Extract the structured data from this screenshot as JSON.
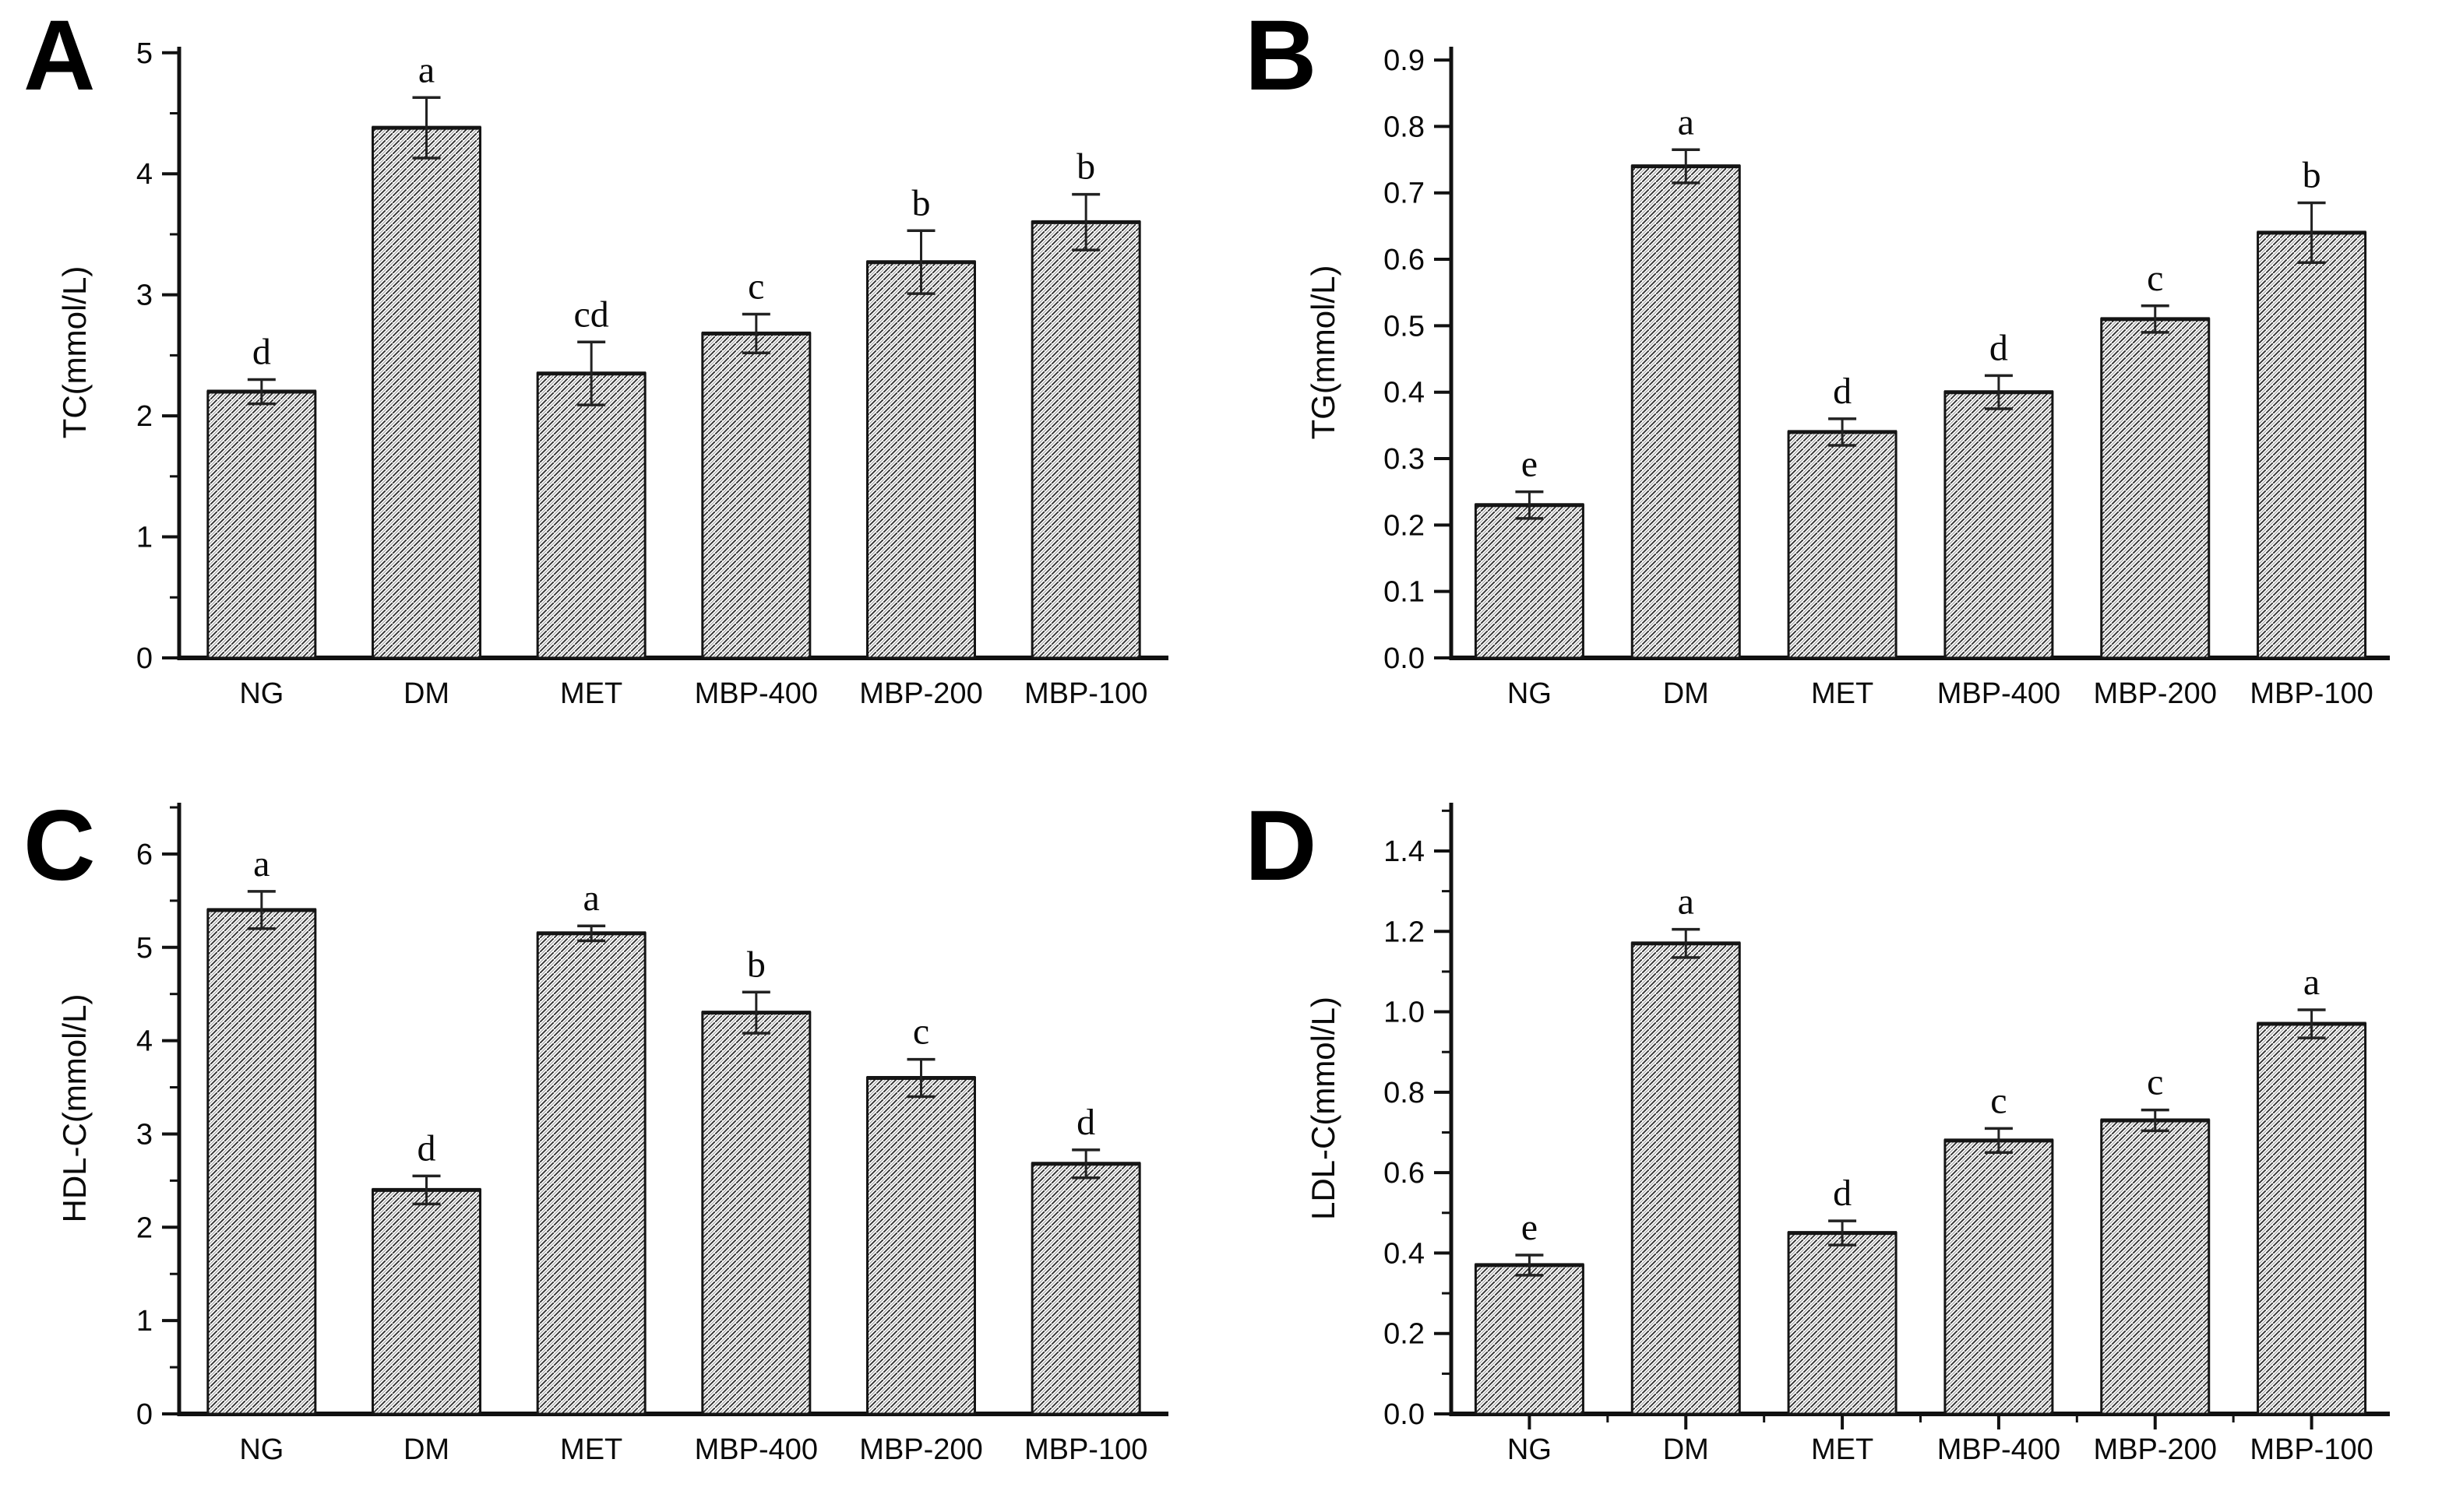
{
  "figure": {
    "background": "#ffffff",
    "axis_color": "#111111",
    "bar_outline_color": "#151515",
    "hatch_dark_color": "#2b2b2b",
    "hatch_light_color": "#a8a8a8",
    "error_bar_color": "#222222",
    "text_color": "#0a0a0a",
    "hatch_style": "diagonal-lines",
    "categories": [
      "NG",
      "DM",
      "MET",
      "MBP-400",
      "MBP-200",
      "MBP-100"
    ]
  },
  "chart_data": [
    {
      "panel": "A",
      "type": "bar",
      "title": "",
      "ylabel": "TC(mmol/L)",
      "xlabel": "",
      "categories": [
        "NG",
        "DM",
        "MET",
        "MBP-400",
        "MBP-200",
        "MBP-100"
      ],
      "values": [
        2.2,
        4.38,
        2.35,
        2.68,
        3.27,
        3.6
      ],
      "errors": [
        0.1,
        0.25,
        0.26,
        0.16,
        0.26,
        0.23
      ],
      "sig_letters": [
        "d",
        "a",
        "cd",
        "c",
        "b",
        "b"
      ],
      "ylim": [
        0,
        5.05
      ],
      "ytick_step": 1,
      "ytick_max": 5,
      "minor_step": 0.5,
      "tick_decimals": 0,
      "grid": "off",
      "legend": "none",
      "x_center_ticks": false
    },
    {
      "panel": "B",
      "type": "bar",
      "title": "",
      "ylabel": "TG(mmol/L)",
      "xlabel": "",
      "categories": [
        "NG",
        "DM",
        "MET",
        "MBP-400",
        "MBP-200",
        "MBP-100"
      ],
      "values": [
        0.23,
        0.74,
        0.34,
        0.4,
        0.51,
        0.64
      ],
      "errors": [
        0.02,
        0.025,
        0.02,
        0.025,
        0.02,
        0.045
      ],
      "sig_letters": [
        "e",
        "a",
        "d",
        "d",
        "c",
        "b"
      ],
      "ylim": [
        0,
        0.92
      ],
      "ytick_step": 0.1,
      "ytick_max": 0.9,
      "minor_step": 0,
      "tick_decimals": 1,
      "grid": "off",
      "legend": "none",
      "x_center_ticks": false
    },
    {
      "panel": "C",
      "type": "bar",
      "title": "",
      "ylabel": "HDL-C(mmol/L)",
      "xlabel": "",
      "categories": [
        "NG",
        "DM",
        "MET",
        "MBP-400",
        "MBP-200",
        "MBP-100"
      ],
      "values": [
        5.4,
        2.4,
        5.15,
        4.3,
        3.6,
        2.68
      ],
      "errors": [
        0.2,
        0.15,
        0.08,
        0.22,
        0.2,
        0.15
      ],
      "sig_letters": [
        "a",
        "d",
        "a",
        "b",
        "c",
        "d"
      ],
      "ylim": [
        0,
        6.55
      ],
      "ytick_step": 1,
      "ytick_max": 6,
      "minor_step": 0.5,
      "tick_decimals": 0,
      "grid": "off",
      "legend": "none",
      "x_center_ticks": false
    },
    {
      "panel": "D",
      "type": "bar",
      "title": "",
      "ylabel": "LDL-C(mmol/L)",
      "xlabel": "",
      "categories": [
        "NG",
        "DM",
        "MET",
        "MBP-400",
        "MBP-200",
        "MBP-100"
      ],
      "values": [
        0.37,
        1.17,
        0.45,
        0.68,
        0.73,
        0.97
      ],
      "errors": [
        0.025,
        0.035,
        0.03,
        0.03,
        0.026,
        0.035
      ],
      "sig_letters": [
        "e",
        "a",
        "d",
        "c",
        "c",
        "a"
      ],
      "ylim": [
        0,
        1.52
      ],
      "ytick_step": 0.2,
      "ytick_max": 1.4,
      "minor_step": 0.1,
      "tick_decimals": 1,
      "grid": "off",
      "legend": "none",
      "x_center_ticks": true
    }
  ]
}
